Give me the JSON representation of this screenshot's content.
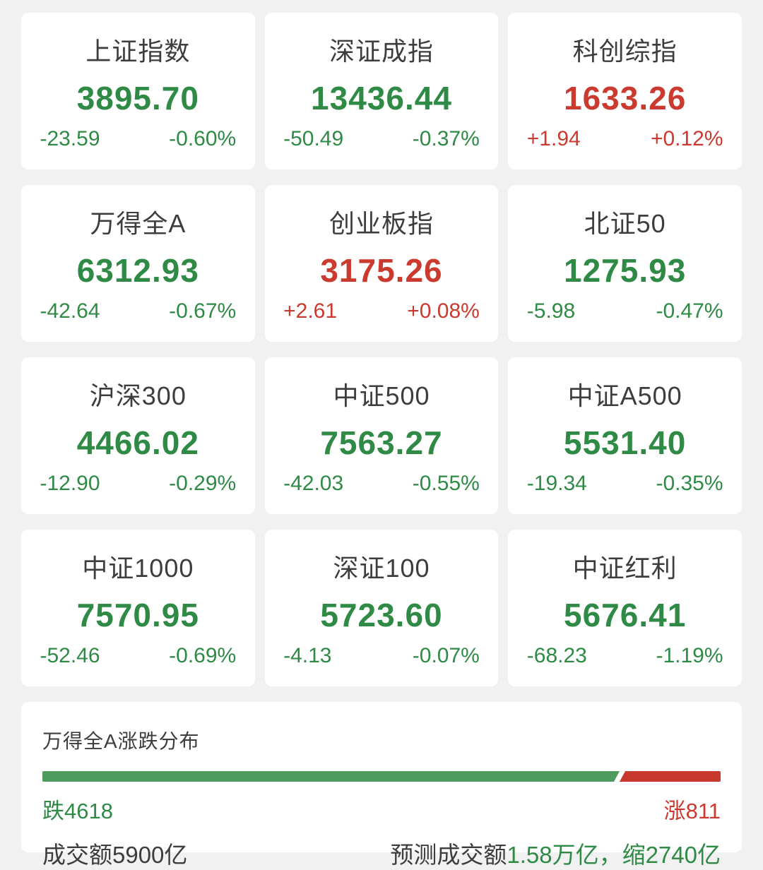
{
  "colors": {
    "page_bg": "#f1f1f2",
    "card_bg": "#ffffff",
    "text": "#3d3d3d",
    "up": "#cb3a2f",
    "down": "#2f8a46",
    "bar_green": "#4f9a5f",
    "bar_red": "#c8382e"
  },
  "indices": [
    {
      "name": "上证指数",
      "value": "3895.70",
      "change": "-23.59",
      "change_pct": "-0.60%",
      "direction": "down"
    },
    {
      "name": "深证成指",
      "value": "13436.44",
      "change": "-50.49",
      "change_pct": "-0.37%",
      "direction": "down"
    },
    {
      "name": "科创综指",
      "value": "1633.26",
      "change": "+1.94",
      "change_pct": "+0.12%",
      "direction": "up"
    },
    {
      "name": "万得全A",
      "value": "6312.93",
      "change": "-42.64",
      "change_pct": "-0.67%",
      "direction": "down"
    },
    {
      "name": "创业板指",
      "value": "3175.26",
      "change": "+2.61",
      "change_pct": "+0.08%",
      "direction": "up"
    },
    {
      "name": "北证50",
      "value": "1275.93",
      "change": "-5.98",
      "change_pct": "-0.47%",
      "direction": "down"
    },
    {
      "name": "沪深300",
      "value": "4466.02",
      "change": "-12.90",
      "change_pct": "-0.29%",
      "direction": "down"
    },
    {
      "name": "中证500",
      "value": "7563.27",
      "change": "-42.03",
      "change_pct": "-0.55%",
      "direction": "down"
    },
    {
      "name": "中证A500",
      "value": "5531.40",
      "change": "-19.34",
      "change_pct": "-0.35%",
      "direction": "down"
    },
    {
      "name": "中证1000",
      "value": "7570.95",
      "change": "-52.46",
      "change_pct": "-0.69%",
      "direction": "down"
    },
    {
      "name": "深证100",
      "value": "5723.60",
      "change": "-4.13",
      "change_pct": "-0.07%",
      "direction": "down"
    },
    {
      "name": "中证红利",
      "value": "5676.41",
      "change": "-68.23",
      "change_pct": "-1.19%",
      "direction": "down"
    }
  ],
  "breadth": {
    "title": "万得全A涨跌分布",
    "decliners_count": 4618,
    "advancers_count": 811,
    "decliners_label": "跌4618",
    "advancers_label": "涨811",
    "green_pct": 85.1,
    "turnover_label": "成交额5900亿",
    "forecast_prefix": "预测成交额",
    "forecast_value": "1.58万亿，",
    "forecast_shrink": "缩2740亿"
  }
}
